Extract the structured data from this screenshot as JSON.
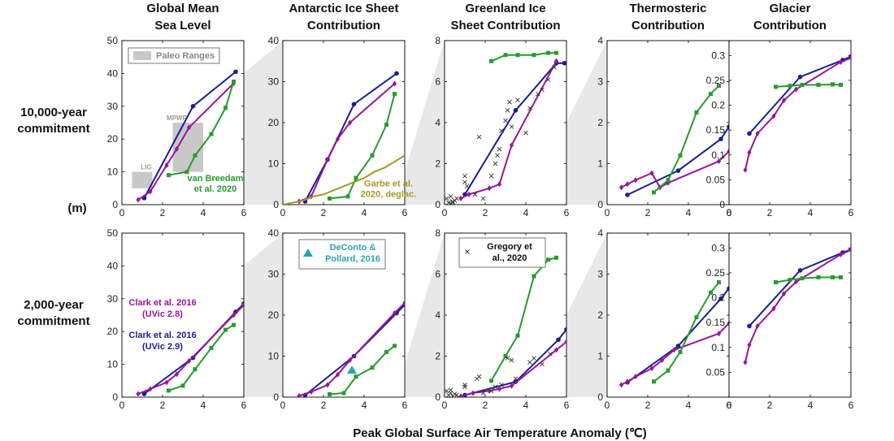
{
  "figure": {
    "column_titles": [
      [
        "Global Mean",
        "Sea Level"
      ],
      [
        "Antarctic Ice Sheet",
        "Contribution"
      ],
      [
        "Greenland Ice",
        "Sheet Contribution"
      ],
      [
        "Thermosteric",
        "Contribution"
      ],
      [
        "Glacier",
        "Contribution"
      ]
    ],
    "row_labels": [
      [
        "10,000-year",
        "commitment"
      ],
      [
        "2,000-year",
        "commitment"
      ]
    ],
    "unit_label": "(m)",
    "xlabel": "Peak Global Surface Air Temperature Anomaly (℃)",
    "colors": {
      "clark_uvic28": "#98159a",
      "clark_uvic29": "#1a1f8f",
      "van_breedam": "#279b2e",
      "garbe": "#a39a25",
      "deconto": "#2aa5a8",
      "gregory": "#333333",
      "paleo": "#c8c8c8",
      "zoom": "#e8e8e8"
    }
  },
  "annotations": {
    "paleo_ranges": "Paleo Ranges",
    "mpwp": "MPWP",
    "lig": "LIG",
    "van_breedam": [
      "van Breedam",
      "et al. 2020"
    ],
    "garbe": [
      "Garbe et al.",
      "2020, deglac."
    ],
    "deconto": [
      "DeConto &",
      "Pollard, 2016"
    ],
    "gregory": [
      "Gregory et",
      "al., 2020"
    ],
    "clark28": [
      "Clark et al. 2016",
      "(UVic 2.8)"
    ],
    "clark29": [
      "Clark et al. 2016",
      "(UVic 2.9)"
    ]
  },
  "chart_data": [
    {
      "type": "line",
      "row": 0,
      "col": 0,
      "title": "Global Mean Sea Level",
      "xlim": [
        0,
        6
      ],
      "ylim": [
        0,
        50
      ],
      "xticks": [
        0,
        2,
        4,
        6
      ],
      "yticks": [
        0,
        10,
        20,
        30,
        40,
        50
      ],
      "series": [
        {
          "name": "Clark et al. 2016 (UVic 2.9)",
          "x": [
            1.1,
            3.5,
            5.6
          ],
          "y": [
            2,
            30,
            40.5
          ]
        },
        {
          "name": "Clark et al. 2016 (UVic 2.8)",
          "x": [
            0.8,
            1.4,
            2.2,
            2.7,
            3.3,
            5.5
          ],
          "y": [
            1.5,
            4,
            12,
            17,
            23.5,
            37
          ]
        },
        {
          "name": "van Breedam et al. 2020",
          "x": [
            2.3,
            3.2,
            3.6,
            4.4,
            5.1,
            5.5
          ],
          "y": [
            9,
            10,
            15,
            21.5,
            29.5,
            37.5
          ]
        }
      ],
      "paleo_ranges": [
        {
          "name": "LIG",
          "x": [
            0.5,
            1.5
          ],
          "y": [
            5,
            10
          ]
        },
        {
          "name": "MPWP",
          "x": [
            2.5,
            4.0
          ],
          "y": [
            10,
            25
          ]
        }
      ]
    },
    {
      "type": "line",
      "row": 0,
      "col": 1,
      "title": "Antarctic Ice Sheet Contribution",
      "xlim": [
        0,
        6
      ],
      "ylim": [
        0,
        40
      ],
      "xticks": [
        0,
        2,
        4,
        6
      ],
      "yticks": [
        0,
        10,
        20,
        30,
        40
      ],
      "series": [
        {
          "name": "Clark et al. 2016 (UVic 2.9)",
          "x": [
            1.1,
            2.2,
            3.5,
            5.6
          ],
          "y": [
            0.8,
            11,
            24.5,
            32
          ]
        },
        {
          "name": "Clark et al. 2016 (UVic 2.8)",
          "x": [
            0.8,
            1.4,
            2.2,
            2.7,
            3.3,
            5.5
          ],
          "y": [
            0.8,
            2,
            11,
            16,
            20,
            29.5
          ]
        },
        {
          "name": "van Breedam et al. 2020",
          "x": [
            2.3,
            3.2,
            3.6,
            4.4,
            5.1,
            5.5
          ],
          "y": [
            1.5,
            2,
            6.5,
            12,
            19.5,
            27
          ]
        },
        {
          "name": "Garbe et al. 2020, deglac.",
          "x": [
            0,
            0.5,
            1,
            1.5,
            2,
            2.5,
            3,
            3.5,
            4,
            4.5,
            5,
            5.5,
            6
          ],
          "y": [
            0,
            0.5,
            1,
            2,
            2.5,
            3.5,
            4.5,
            5.5,
            6.5,
            8,
            9,
            10.5,
            12
          ]
        }
      ]
    },
    {
      "type": "line",
      "row": 0,
      "col": 2,
      "title": "Greenland Ice Sheet Contribution",
      "xlim": [
        0,
        6
      ],
      "ylim": [
        0,
        8
      ],
      "xticks": [
        0,
        2,
        4,
        6
      ],
      "yticks": [
        0,
        2,
        4,
        6,
        8
      ],
      "series": [
        {
          "name": "Clark et al. 2016 (UVic 2.9)",
          "x": [
            1.0,
            3.5,
            5.5,
            5.9
          ],
          "y": [
            0.5,
            4.6,
            6.9,
            6.9
          ]
        },
        {
          "name": "Clark et al. 2016 (UVic 2.8)",
          "x": [
            0.8,
            1.2,
            2.2,
            2.7,
            3.3,
            5.5
          ],
          "y": [
            0.3,
            0.5,
            0.8,
            1.0,
            2.9,
            7.0
          ]
        },
        {
          "name": "van Breedam et al. 2020",
          "x": [
            2.3,
            3.0,
            3.6,
            4.4,
            5.1,
            5.5
          ],
          "y": [
            7.0,
            7.3,
            7.3,
            7.3,
            7.4,
            7.4
          ]
        },
        {
          "name": "Gregory et al., 2020",
          "type": "scatter",
          "x": [
            0.1,
            0.2,
            0.3,
            0.4,
            0.5,
            0.6,
            0.3,
            0.4,
            1.0,
            1.0,
            1.1,
            1.5,
            1.7,
            1.9,
            2.3,
            2.5,
            2.6,
            2.7,
            2.8,
            3.0,
            3.1,
            3.2,
            3.3,
            3.6,
            4.0,
            4.2,
            4.6,
            4.8,
            5.1,
            5.4
          ],
          "y": [
            0.3,
            0.1,
            0.4,
            0.1,
            0.2,
            0.3,
            0.05,
            0.15,
            1.1,
            1.4,
            0.9,
            0.5,
            3.3,
            0.3,
            1.4,
            2.0,
            2.4,
            2.7,
            3.6,
            4.1,
            4.6,
            5.0,
            3.8,
            5.1,
            3.5,
            4.7,
            5.4,
            5.6,
            6.1,
            6.7
          ]
        }
      ]
    },
    {
      "type": "line",
      "row": 0,
      "col": 3,
      "title": "Thermosteric Contribution",
      "xlim": [
        0,
        6
      ],
      "ylim": [
        0,
        4
      ],
      "xticks": [
        0,
        2,
        4,
        6
      ],
      "yticks": [
        0,
        1,
        2,
        3,
        4
      ],
      "series": [
        {
          "name": "Clark et al. 2016 (UVic 2.9)",
          "x": [
            1.0,
            3.5,
            5.6,
            6.0
          ],
          "y": [
            0.24,
            0.83,
            1.6,
            1.9
          ]
        },
        {
          "name": "Clark et al. 2016 (UVic 2.8)",
          "x": [
            0.7,
            1.0,
            1.4,
            2.2,
            2.6,
            3.0,
            5.5,
            6.0
          ],
          "y": [
            0.42,
            0.5,
            0.6,
            0.77,
            0.42,
            0.53,
            1.06,
            1.3
          ]
        },
        {
          "name": "van Breedam et al. 2020",
          "x": [
            2.3,
            3.0,
            3.6,
            4.4,
            5.1,
            5.5
          ],
          "y": [
            0.3,
            0.6,
            1.2,
            2.25,
            2.7,
            2.9
          ]
        }
      ]
    },
    {
      "type": "line",
      "row": 0,
      "col": 4,
      "title": "Glacier Contribution",
      "xlim": [
        0,
        6
      ],
      "ylim": [
        0,
        0.33
      ],
      "xticks": [
        0,
        2,
        4,
        6
      ],
      "yticks": [
        0,
        0.05,
        0.1,
        0.15,
        0.2,
        0.25,
        0.3
      ],
      "series": [
        {
          "name": "Clark et al. 2016 (UVic 2.9)",
          "x": [
            1.0,
            3.5,
            5.6,
            6.0
          ],
          "y": [
            0.143,
            0.257,
            0.291,
            0.298
          ]
        },
        {
          "name": "Clark et al. 2016 (UVic 2.8)",
          "x": [
            0.8,
            1.0,
            1.4,
            2.2,
            2.7,
            3.3,
            5.5,
            6.0
          ],
          "y": [
            0.07,
            0.105,
            0.143,
            0.178,
            0.21,
            0.232,
            0.287,
            0.295
          ]
        },
        {
          "name": "van Breedam et al. 2020",
          "x": [
            2.3,
            3.0,
            3.6,
            4.4,
            5.1,
            5.5
          ],
          "y": [
            0.237,
            0.239,
            0.241,
            0.241,
            0.242,
            0.241
          ]
        }
      ]
    },
    {
      "type": "line",
      "row": 1,
      "col": 0,
      "title": "Global Mean Sea Level",
      "xlim": [
        0,
        6
      ],
      "ylim": [
        0,
        50
      ],
      "xticks": [
        0,
        2,
        4,
        6
      ],
      "yticks": [
        0,
        10,
        20,
        30,
        40,
        50
      ],
      "series": [
        {
          "name": "Clark et al. 2016 (UVic 2.9)",
          "x": [
            1.1,
            3.5,
            5.6,
            6.0
          ],
          "y": [
            1,
            12,
            26,
            28.5
          ]
        },
        {
          "name": "Clark et al. 2016 (UVic 2.8)",
          "x": [
            0.8,
            1.4,
            2.2,
            2.7,
            3.3,
            5.5,
            6.0
          ],
          "y": [
            1,
            2.5,
            4.5,
            7,
            11,
            25,
            28
          ]
        },
        {
          "name": "van Breedam et al. 2020",
          "x": [
            2.3,
            3.0,
            3.6,
            4.4,
            5.1,
            5.5
          ],
          "y": [
            2,
            3.5,
            8.5,
            15,
            20.5,
            22
          ]
        }
      ]
    },
    {
      "type": "line",
      "row": 1,
      "col": 1,
      "title": "Antarctic Ice Sheet Contribution",
      "xlim": [
        0,
        6
      ],
      "ylim": [
        0,
        40
      ],
      "xticks": [
        0,
        2,
        4,
        6
      ],
      "yticks": [
        0,
        10,
        20,
        30,
        40
      ],
      "series": [
        {
          "name": "Clark et al. 2016 (UVic 2.9)",
          "x": [
            1.1,
            3.5,
            5.6,
            6.0
          ],
          "y": [
            0.5,
            10,
            20.5,
            22.5
          ]
        },
        {
          "name": "Clark et al. 2016 (UVic 2.8)",
          "x": [
            0.8,
            1.4,
            2.2,
            2.7,
            3.3,
            5.5,
            6.0
          ],
          "y": [
            0.3,
            1.3,
            3,
            5.5,
            9,
            20.5,
            23
          ]
        },
        {
          "name": "van Breedam et al. 2020",
          "x": [
            2.3,
            3.0,
            3.6,
            4.4,
            5.1,
            5.5
          ],
          "y": [
            0.7,
            1,
            5,
            7.2,
            11,
            12.5
          ]
        },
        {
          "name": "DeConto & Pollard, 2016",
          "type": "scatter",
          "x": [
            3.4
          ],
          "y": [
            6.5
          ]
        }
      ]
    },
    {
      "type": "line",
      "row": 1,
      "col": 2,
      "title": "Greenland Ice Sheet Contribution",
      "xlim": [
        0,
        6
      ],
      "ylim": [
        0,
        8
      ],
      "xticks": [
        0,
        2,
        4,
        6
      ],
      "yticks": [
        0,
        2,
        4,
        6,
        8
      ],
      "series": [
        {
          "name": "Clark et al. 2016 (UVic 2.9)",
          "x": [
            1.0,
            3.5,
            5.6,
            6.0
          ],
          "y": [
            0.1,
            0.75,
            2.8,
            3.3
          ]
        },
        {
          "name": "Clark et al. 2016 (UVic 2.8)",
          "x": [
            0.8,
            1.4,
            2.2,
            2.7,
            3.3,
            5.5,
            6.0
          ],
          "y": [
            0.05,
            0.2,
            0.3,
            0.4,
            0.55,
            2.3,
            2.7
          ]
        },
        {
          "name": "van Breedam et al. 2020",
          "x": [
            2.3,
            3.0,
            3.6,
            4.4,
            5.1,
            5.5
          ],
          "y": [
            0.8,
            2.0,
            3.0,
            5.9,
            6.7,
            6.8
          ]
        },
        {
          "name": "Gregory et al., 2020",
          "type": "scatter",
          "x": [
            0.1,
            0.2,
            0.3,
            0.4,
            0.5,
            0.3,
            0.6,
            1.0,
            1.0,
            1.6,
            1.7,
            1.9,
            2.3,
            2.5,
            2.8,
            3.1,
            3.3,
            3.5,
            4.2,
            4.4,
            4.8,
            5.2
          ],
          "y": [
            0.3,
            0.1,
            0.2,
            0.05,
            0.15,
            0.35,
            0.1,
            0.5,
            0.6,
            0.9,
            1.0,
            0.2,
            0.3,
            0.5,
            0.6,
            1.9,
            1.8,
            0.9,
            1.7,
            1.9,
            1.6,
            2.1
          ]
        }
      ]
    },
    {
      "type": "line",
      "row": 1,
      "col": 3,
      "title": "Thermosteric Contribution",
      "xlim": [
        0,
        6
      ],
      "ylim": [
        0,
        4
      ],
      "xticks": [
        0,
        2,
        4,
        6
      ],
      "yticks": [
        0,
        1,
        2,
        3,
        4
      ],
      "series": [
        {
          "name": "Clark et al. 2016 (UVic 2.9)",
          "x": [
            1.0,
            3.5,
            5.6,
            6.0
          ],
          "y": [
            0.36,
            1.25,
            2.4,
            2.65
          ]
        },
        {
          "name": "Clark et al. 2016 (UVic 2.8)",
          "x": [
            0.7,
            1.0,
            1.4,
            2.2,
            2.7,
            3.3,
            5.5,
            6.0
          ],
          "y": [
            0.3,
            0.38,
            0.5,
            0.7,
            0.9,
            1.15,
            1.55,
            1.8
          ]
        },
        {
          "name": "van Breedam et al. 2020",
          "x": [
            2.3,
            3.0,
            3.6,
            4.4,
            5.1,
            5.5
          ],
          "y": [
            0.38,
            0.65,
            1.1,
            1.95,
            2.55,
            2.8
          ]
        }
      ]
    },
    {
      "type": "line",
      "row": 1,
      "col": 4,
      "title": "Glacier Contribution",
      "xlim": [
        0,
        6
      ],
      "ylim": [
        0,
        0.33
      ],
      "xticks": [
        0,
        2,
        4,
        6
      ],
      "yticks": [
        0.05,
        0.1,
        0.15,
        0.2,
        0.25,
        0.3
      ],
      "series": [
        {
          "name": "Clark et al. 2016 (UVic 2.9)",
          "x": [
            1.0,
            3.5,
            5.6,
            6.0
          ],
          "y": [
            0.143,
            0.255,
            0.291,
            0.297
          ]
        },
        {
          "name": "Clark et al. 2016 (UVic 2.8)",
          "x": [
            0.8,
            1.0,
            1.4,
            2.2,
            2.7,
            3.3,
            5.5,
            6.0
          ],
          "y": [
            0.07,
            0.105,
            0.143,
            0.178,
            0.208,
            0.232,
            0.287,
            0.296
          ]
        },
        {
          "name": "van Breedam et al. 2020",
          "x": [
            2.3,
            3.0,
            3.6,
            4.4,
            5.1,
            5.5
          ],
          "y": [
            0.231,
            0.236,
            0.239,
            0.241,
            0.241,
            0.241
          ]
        }
      ]
    }
  ]
}
